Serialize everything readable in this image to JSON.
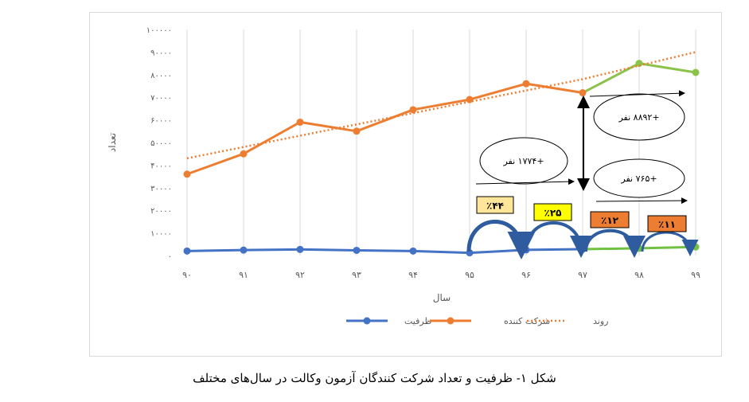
{
  "chart_data": {
    "type": "line",
    "ylabel": "تعداد",
    "xlabel": "سال",
    "x": [
      "۹۰",
      "۹۱",
      "۹۲",
      "۹۳",
      "۹۴",
      "۹۵",
      "۹۶",
      "۹۷",
      "۹۸",
      "۹۹"
    ],
    "ylim": [
      0,
      100000
    ],
    "yticks": [
      {
        "value": 0,
        "label": "۰"
      },
      {
        "value": 10000,
        "label": "۱۰۰۰۰"
      },
      {
        "value": 20000,
        "label": "۲۰۰۰۰"
      },
      {
        "value": 30000,
        "label": "۳۰۰۰۰"
      },
      {
        "value": 40000,
        "label": "۴۰۰۰۰"
      },
      {
        "value": 50000,
        "label": "۵۰۰۰۰"
      },
      {
        "value": 60000,
        "label": "۶۰۰۰۰"
      },
      {
        "value": 70000,
        "label": "۷۰۰۰۰"
      },
      {
        "value": 80000,
        "label": "۸۰۰۰۰"
      },
      {
        "value": 90000,
        "label": "۹۰۰۰۰"
      },
      {
        "value": 100000,
        "label": "۱۰۰۰۰۰"
      }
    ],
    "grid": "vertical",
    "legend_position": "bottom",
    "series": [
      {
        "name": "ظرفیت",
        "color": "#4472c4",
        "values": [
          2000,
          2400,
          2700,
          2300,
          2000,
          1200,
          2500,
          2800,
          3200,
          3800
        ],
        "highlight_from_index": 7,
        "highlight_color": "#70c141"
      },
      {
        "name": "شرکت کننده",
        "color": "#ed7d31",
        "values": [
          36000,
          45000,
          59000,
          55000,
          64500,
          69000,
          76000,
          72000,
          85000,
          81000
        ],
        "highlight_from_index": 7,
        "highlight_color": "#8bc34a"
      },
      {
        "name": "روند",
        "color": "#ed7d31",
        "style": "dotted",
        "values": [
          43000,
          48000,
          53000,
          58000,
          63000,
          68000,
          73000,
          78000,
          84000,
          90000
        ]
      }
    ],
    "annotations": {
      "bubble1": "+۱۷۷۴ نفر",
      "bubble2": "+۸۸۹۲ نفر",
      "bubble3": "+۷۶۵ نفر",
      "pct": [
        {
          "label": "٪۴۴",
          "color": "#ffe699"
        },
        {
          "label": "٪۲۵",
          "color": "#ffff00"
        },
        {
          "label": "٪۱۲",
          "color": "#ed7d31"
        },
        {
          "label": "٪۱۱",
          "color": "#ed7d31"
        }
      ],
      "arc_color": "#2e5c9e"
    }
  },
  "caption": "شکل ۱- ظرفیت و تعداد شرکت کنندگان آزمون وکالت در سال‌های مختلف"
}
